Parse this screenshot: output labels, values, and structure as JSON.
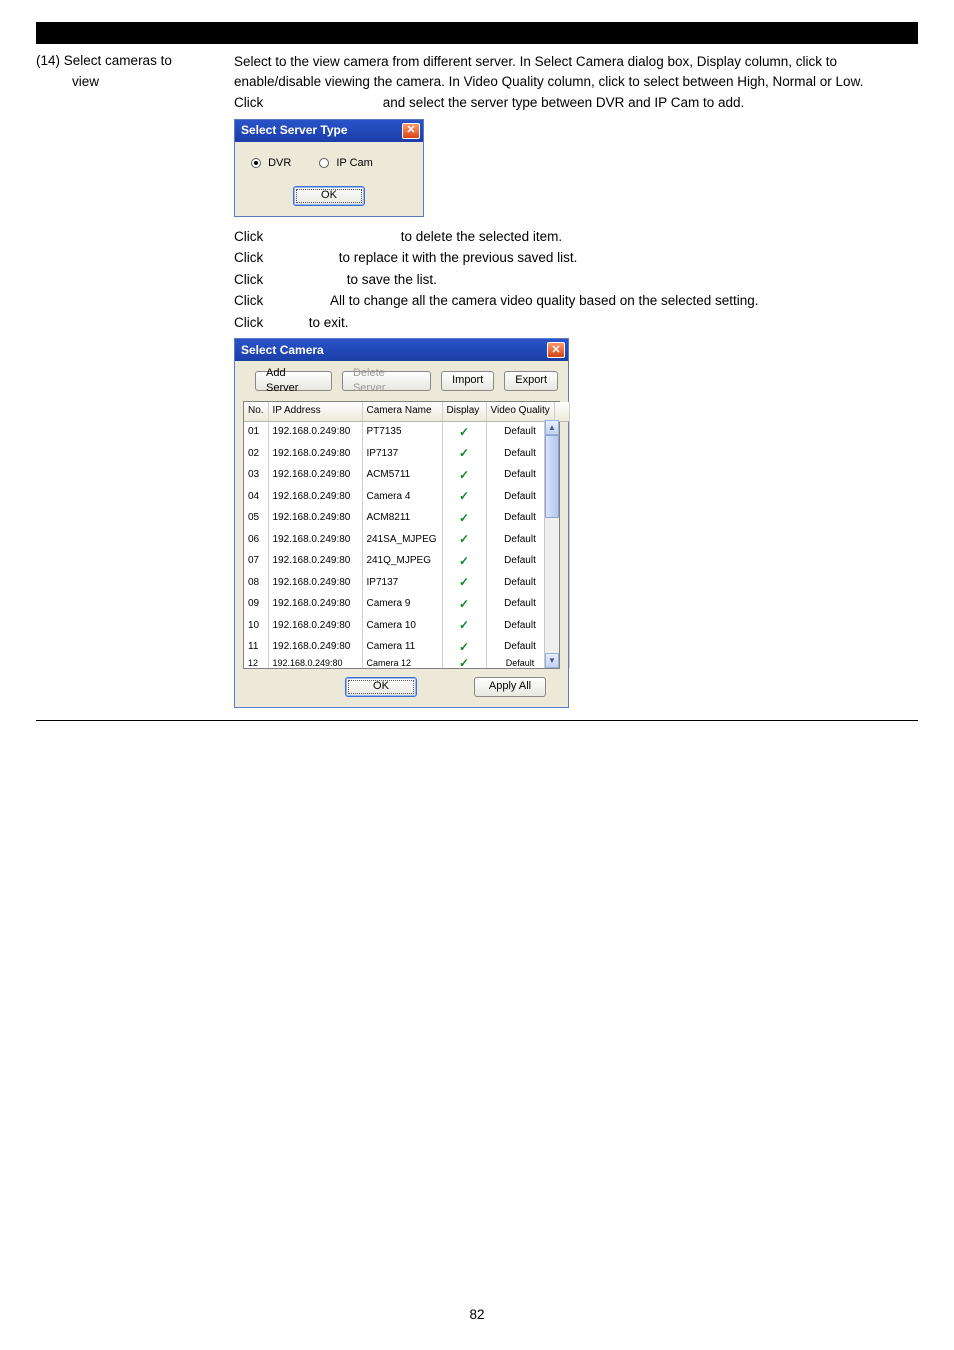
{
  "page_number": "82",
  "left": {
    "item_number": "(14)",
    "item_title_line1": "Select cameras to",
    "item_title_line2": "view"
  },
  "desc": {
    "para": "Select to the view camera from different server. In Select Camera dialog box, Display column, click to enable/disable viewing the camera. In Video Quality column, click to select between High, Normal or Low.",
    "click1_pre": "Click",
    "click1_post": "and select the server type between DVR and IP Cam to add.",
    "click2_pre": "Click",
    "click2_post": "to delete the selected item.",
    "click3_pre": "Click",
    "click3_post": "to replace it with the previous saved list.",
    "click4_pre": "Click",
    "click4_post": "to save the list.",
    "click5_pre": "Click",
    "click5_post": "All to change all the camera video quality based on the selected setting.",
    "click6_pre": "Click",
    "click6_post": "to exit."
  },
  "dlg_srvtype": {
    "title": "Select Server Type",
    "opt_dvr": "DVR",
    "opt_ipcam": "IP Cam",
    "ok": "OK"
  },
  "dlg_selcam": {
    "title": "Select Camera",
    "btn_addserver": "Add Server",
    "btn_delserver": "Delete Server",
    "btn_import": "Import",
    "btn_export": "Export",
    "hdr_no": "No.",
    "hdr_ip": "IP Address",
    "hdr_name": "Camera Name",
    "hdr_disp": "Display",
    "hdr_qual": "Video Quality",
    "ok": "OK",
    "apply": "Apply All",
    "rows": [
      {
        "no": "01",
        "ip": "192.168.0.249:80",
        "name": "PT7135",
        "qual": "Default"
      },
      {
        "no": "02",
        "ip": "192.168.0.249:80",
        "name": "IP7137",
        "qual": "Default"
      },
      {
        "no": "03",
        "ip": "192.168.0.249:80",
        "name": "ACM5711",
        "qual": "Default"
      },
      {
        "no": "04",
        "ip": "192.168.0.249:80",
        "name": "Camera 4",
        "qual": "Default"
      },
      {
        "no": "05",
        "ip": "192.168.0.249:80",
        "name": "ACM8211",
        "qual": "Default"
      },
      {
        "no": "06",
        "ip": "192.168.0.249:80",
        "name": "241SA_MJPEG",
        "qual": "Default"
      },
      {
        "no": "07",
        "ip": "192.168.0.249:80",
        "name": "241Q_MJPEG",
        "qual": "Default"
      },
      {
        "no": "08",
        "ip": "192.168.0.249:80",
        "name": "IP7137",
        "qual": "Default"
      },
      {
        "no": "09",
        "ip": "192.168.0.249:80",
        "name": "Camera 9",
        "qual": "Default"
      },
      {
        "no": "10",
        "ip": "192.168.0.249:80",
        "name": "Camera 10",
        "qual": "Default"
      },
      {
        "no": "11",
        "ip": "192.168.0.249:80",
        "name": "Camera 11",
        "qual": "Default"
      },
      {
        "no": "12",
        "ip": "192.168.0.249:80",
        "name": "Camera 12",
        "qual": "Default"
      }
    ],
    "scroll_thumb": {
      "top_pct": 0,
      "height_pct": 38
    }
  }
}
